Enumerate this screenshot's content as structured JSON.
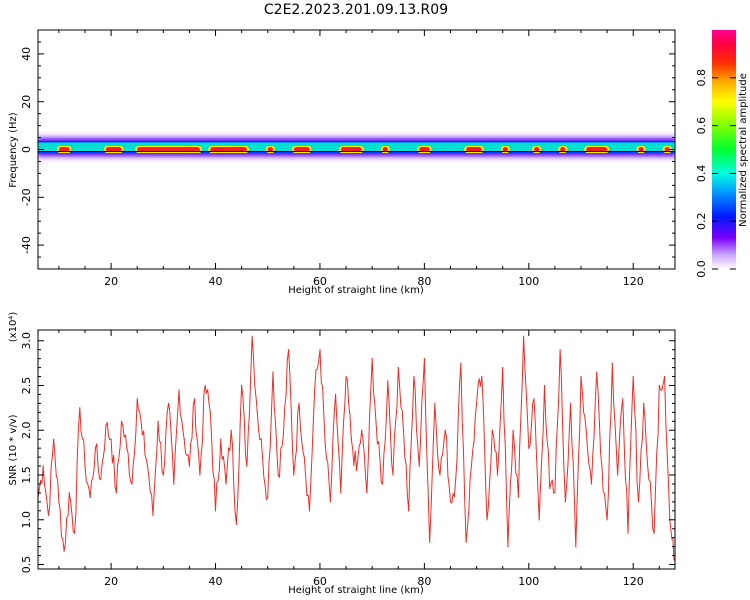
{
  "title": "C2E2.2023.201.09.13.R09",
  "colors": {
    "snr_line": "#e8302a",
    "baseline": "#000000",
    "axes": "#000000"
  },
  "chart_data": [
    {
      "type": "heatmap",
      "xlabel": "Height of straight line (km)",
      "ylabel": "Frequency (Hz)",
      "xlim": [
        6,
        128
      ],
      "ylim": [
        -50,
        50
      ],
      "xticks": [
        "20",
        "40",
        "60",
        "80",
        "100",
        "120"
      ],
      "yticks": [
        "-40",
        "-20",
        "0",
        "20",
        "40"
      ],
      "colorbar": {
        "label": "Normalized spectral amplitude",
        "range": [
          0.0,
          1.0
        ],
        "ticks": [
          "0.0",
          "0.2",
          "0.4",
          "0.6",
          "0.8"
        ],
        "colormap": "rainbow"
      },
      "signal_band_hz": [
        -2,
        4
      ],
      "peak_segments_km": [
        [
          10,
          12
        ],
        [
          19,
          22
        ],
        [
          25,
          37
        ],
        [
          39,
          46
        ],
        [
          50,
          51
        ],
        [
          55,
          58
        ],
        [
          64,
          68
        ],
        [
          72,
          73
        ],
        [
          79,
          81
        ],
        [
          88,
          91
        ],
        [
          95,
          96
        ],
        [
          101,
          102
        ],
        [
          106,
          107
        ],
        [
          111,
          115
        ],
        [
          121,
          122
        ],
        [
          126,
          127
        ]
      ]
    },
    {
      "type": "line",
      "xlabel": "Height of straight line (km)",
      "ylabel": "SNR (10 * v/v)",
      "y_multiplier": "(x10⁴)",
      "xlim": [
        6,
        128
      ],
      "ylim": [
        0.45,
        3.12
      ],
      "xticks": [
        "20",
        "40",
        "60",
        "80",
        "100",
        "120"
      ],
      "yticks": [
        "0.5",
        "1.0",
        "1.5",
        "2.0",
        "2.5",
        "3.0"
      ],
      "series": [
        {
          "x": [
            6.0,
            7.0,
            8.0,
            9.0,
            10.0,
            11.0,
            12.0,
            13.0,
            14.0,
            15.0,
            16.0,
            17.0,
            18.0,
            19.0,
            20.0,
            21.0,
            22.0,
            23.0,
            24.0,
            25.0,
            26.0,
            27.0,
            28.0,
            29.0,
            30.0,
            31.0,
            32.0,
            33.0,
            34.0,
            35.0,
            36.0,
            37.0,
            38.0,
            39.0,
            40.0,
            41.0,
            42.0,
            43.0,
            44.0,
            45.0,
            46.0,
            47.0,
            48.0,
            49.0,
            50.0,
            51.0,
            52.0,
            53.0,
            54.0,
            55.0,
            56.0,
            57.0,
            58.0,
            59.0,
            60.0,
            61.0,
            62.0,
            63.0,
            64.0,
            65.0,
            66.0,
            67.0,
            68.0,
            69.0,
            70.0,
            71.0,
            72.0,
            73.0,
            74.0,
            75.0,
            76.0,
            77.0,
            78.0,
            79.0,
            80.0,
            81.0,
            82.0,
            83.0,
            84.0,
            85.0,
            86.0,
            87.0,
            88.0,
            89.0,
            90.0,
            91.0,
            92.0,
            93.0,
            94.0,
            95.0,
            96.0,
            97.0,
            98.0,
            99.0,
            100.0,
            101.0,
            102.0,
            103.0,
            104.0,
            105.0,
            106.0,
            107.0,
            108.0,
            109.0,
            110.0,
            111.0,
            112.0,
            113.0,
            114.0,
            115.0,
            116.0,
            117.0,
            118.0,
            119.0,
            120.0,
            121.0,
            122.0,
            123.0,
            124.0,
            125.0,
            126.0,
            127.0,
            127.8
          ],
          "y": [
            1.25,
            1.6,
            1.05,
            1.9,
            1.2,
            0.65,
            1.3,
            0.85,
            2.25,
            1.6,
            1.25,
            1.8,
            1.45,
            2.05,
            1.9,
            1.3,
            2.1,
            1.8,
            1.4,
            2.35,
            1.95,
            1.6,
            1.05,
            2.1,
            1.5,
            2.3,
            1.4,
            2.45,
            1.9,
            1.6,
            2.35,
            1.5,
            2.5,
            2.2,
            1.1,
            1.9,
            1.4,
            2.0,
            0.95,
            2.5,
            1.6,
            3.05,
            2.2,
            1.7,
            1.25,
            2.65,
            1.5,
            1.95,
            2.9,
            1.5,
            2.3,
            1.7,
            1.1,
            2.45,
            2.9,
            1.85,
            1.2,
            2.4,
            1.3,
            2.6,
            1.9,
            1.55,
            2.0,
            1.3,
            2.8,
            1.85,
            1.4,
            2.55,
            1.5,
            2.7,
            2.0,
            1.1,
            2.6,
            1.6,
            2.8,
            0.75,
            2.3,
            1.5,
            2.0,
            1.2,
            1.45,
            2.75,
            0.75,
            1.6,
            2.3,
            2.6,
            1.0,
            2.0,
            1.5,
            2.7,
            0.7,
            2.0,
            1.25,
            3.05,
            1.8,
            2.35,
            1.0,
            2.5,
            1.35,
            1.3,
            2.9,
            1.2,
            2.3,
            0.7,
            2.6,
            2.0,
            1.4,
            2.65,
            1.6,
            1.0,
            2.75,
            1.5,
            2.35,
            0.85,
            2.6,
            1.2,
            2.3,
            1.45,
            0.85,
            2.5,
            2.6,
            1.0,
            0.55
          ]
        }
      ]
    }
  ]
}
